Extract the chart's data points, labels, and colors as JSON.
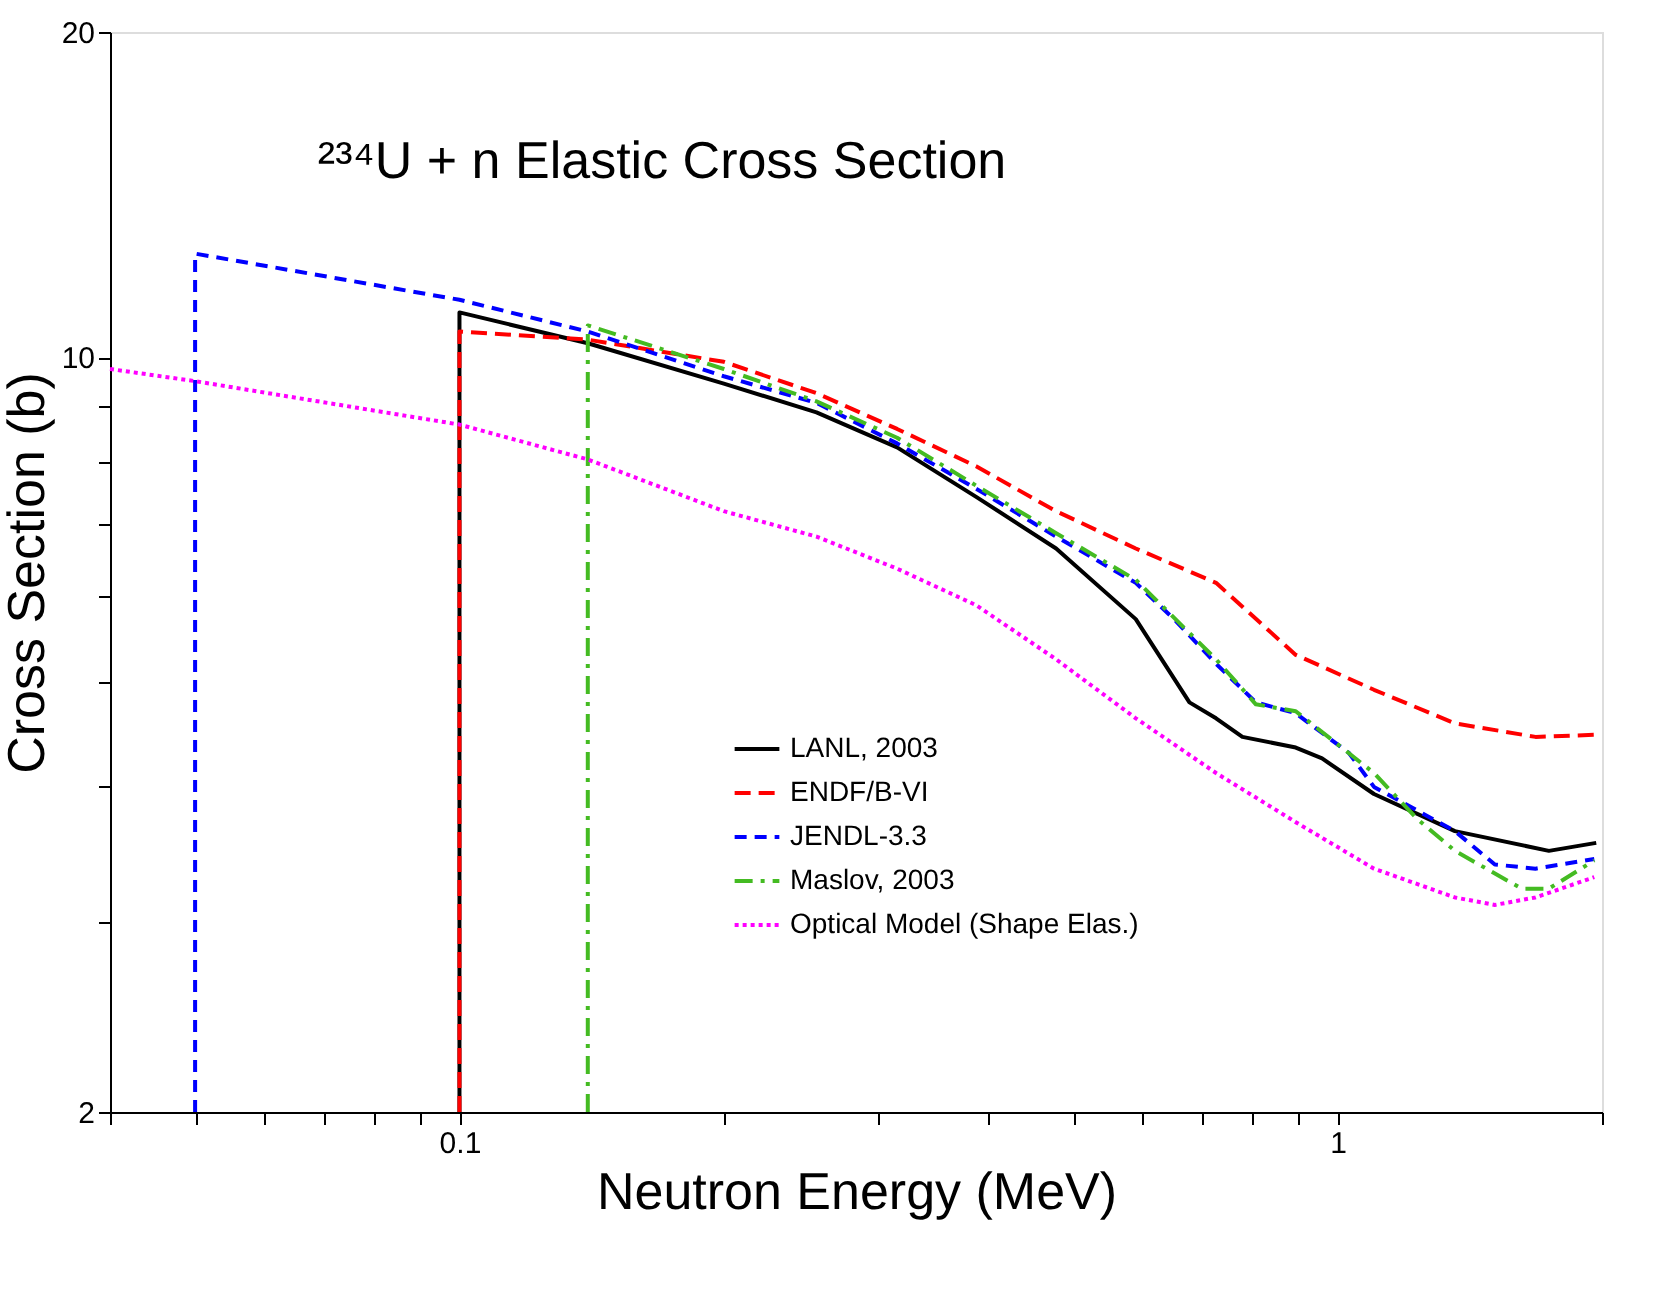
{
  "chart_data": {
    "type": "line",
    "title": "²³⁴U + n Elastic Cross Section",
    "xlabel": "Neutron Energy (MeV)",
    "ylabel": "Cross Section (b)",
    "log": "xy",
    "xlim": [
      0.04,
      2
    ],
    "ylim": [
      2,
      20
    ],
    "xticks": [
      {
        "value": 0.04,
        "label": null
      },
      {
        "value": 0.05,
        "label": null
      },
      {
        "value": 0.06,
        "label": null
      },
      {
        "value": 0.07,
        "label": null
      },
      {
        "value": 0.08,
        "label": null
      },
      {
        "value": 0.09,
        "label": null
      },
      0.1,
      {
        "value": 0.2,
        "label": null
      },
      {
        "value": 0.3,
        "label": null
      },
      {
        "value": 0.4,
        "label": null
      },
      {
        "value": 0.5,
        "label": null
      },
      {
        "value": 0.6,
        "label": null
      },
      {
        "value": 0.7,
        "label": null
      },
      {
        "value": 0.8,
        "label": null
      },
      {
        "value": 0.9,
        "label": null
      },
      1,
      {
        "value": 2,
        "label": null
      }
    ],
    "yticks": [
      2,
      {
        "value": 3,
        "label": null
      },
      {
        "value": 4,
        "label": null
      },
      {
        "value": 5,
        "label": null
      },
      {
        "value": 6,
        "label": null
      },
      {
        "value": 7,
        "label": null
      },
      {
        "value": 8,
        "label": null
      },
      {
        "value": 9,
        "label": null
      },
      10,
      20
    ],
    "grid": false,
    "legend": "bottom right",
    "marker": "none",
    "series": [
      {
        "name": "LANL, 2003",
        "color": "#000000",
        "line_style": "solid",
        "x": [
          0.1,
          0.1,
          0.14,
          0.2,
          0.255,
          0.315,
          0.388,
          0.478,
          0.589,
          0.678,
          0.727,
          0.779,
          0.896,
          0.96,
          1.1,
          1.36,
          1.74,
          1.97
        ],
        "values": [
          2,
          11.0,
          10.3,
          9.45,
          8.89,
          8.25,
          7.42,
          6.65,
          5.72,
          4.79,
          4.63,
          4.45,
          4.35,
          4.25,
          3.94,
          3.64,
          3.49,
          3.55
        ]
      },
      {
        "name": "ENDF/B-VI",
        "color": "#ff0000",
        "line_style": "dashed",
        "x": [
          0.1,
          0.1,
          0.14,
          0.2,
          0.255,
          0.315,
          0.388,
          0.478,
          0.589,
          0.727,
          0.896,
          1.1,
          1.36,
          1.68,
          1.97
        ],
        "values": [
          2,
          10.56,
          10.38,
          9.9,
          9.26,
          8.58,
          7.92,
          7.2,
          6.65,
          6.18,
          5.3,
          4.92,
          4.58,
          4.45,
          4.47
        ]
      },
      {
        "name": "JENDL-3.3",
        "color": "#0000ff",
        "line_style": "dashed",
        "x": [
          0.05,
          0.05,
          0.1,
          0.14,
          0.2,
          0.255,
          0.315,
          0.388,
          0.478,
          0.589,
          0.654,
          0.727,
          0.807,
          0.896,
          1.03,
          1.1,
          1.36,
          1.51,
          1.68,
          1.96
        ],
        "values": [
          2,
          12.47,
          11.3,
          10.56,
          9.6,
          9.07,
          8.32,
          7.55,
          6.82,
          6.18,
          5.7,
          5.2,
          4.79,
          4.68,
          4.3,
          4.0,
          3.64,
          3.39,
          3.36,
          3.43
        ]
      },
      {
        "name": "Maslov, 2003",
        "color": "#44bb22",
        "line_style": "dashdot",
        "x": [
          0.14,
          0.14,
          0.2,
          0.255,
          0.315,
          0.388,
          0.478,
          0.589,
          0.727,
          0.807,
          0.896,
          1.1,
          1.23,
          1.36,
          1.62,
          1.74,
          1.96
        ],
        "values": [
          2,
          10.7,
          9.75,
          9.1,
          8.42,
          7.6,
          6.87,
          6.22,
          5.25,
          4.77,
          4.7,
          4.12,
          3.74,
          3.49,
          3.22,
          3.22,
          3.42
        ]
      },
      {
        "name": "Optical Model (Shape Elas.)",
        "color": "#ff00ff",
        "line_style": "dotted",
        "x": [
          0.04,
          0.05,
          0.1,
          0.14,
          0.2,
          0.255,
          0.315,
          0.388,
          0.478,
          0.589,
          0.727,
          0.896,
          1.1,
          1.36,
          1.51,
          1.68,
          1.96
        ],
        "values": [
          9.75,
          9.5,
          8.66,
          8.04,
          7.2,
          6.82,
          6.37,
          5.89,
          5.25,
          4.63,
          4.12,
          3.71,
          3.36,
          3.16,
          3.11,
          3.16,
          3.3
        ]
      }
    ]
  }
}
